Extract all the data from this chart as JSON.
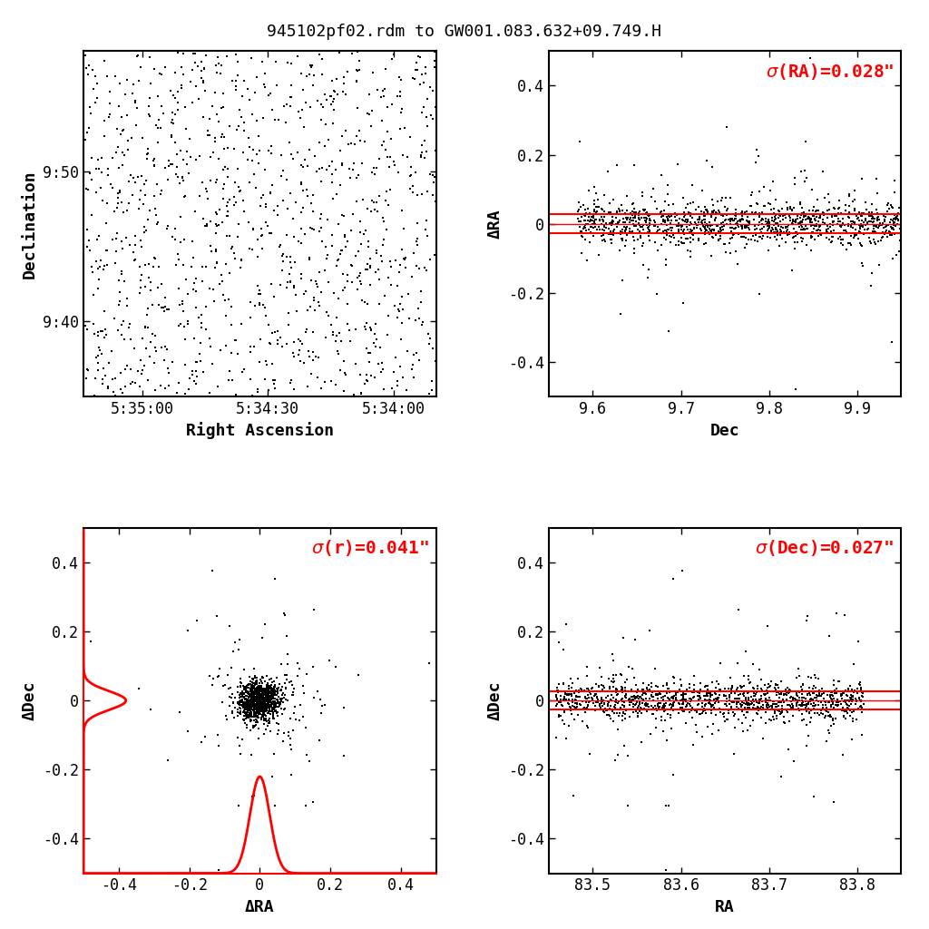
{
  "title": "945102pf02.rdm to GW001.083.632+09.749.H",
  "sigma_ra_str": "0.028",
  "sigma_dec_str": "0.027",
  "sigma_r_str": "0.041",
  "n_stars": 1200,
  "ra_sigma": 0.028,
  "dec_sigma": 0.027,
  "sky_ra_min": 83.458,
  "sky_ra_max": 83.808,
  "sky_dec_min": 9.583,
  "sky_dec_max": 9.967,
  "res_xlim": [
    -0.5,
    0.5
  ],
  "res_ylim": [
    -0.5,
    0.5
  ],
  "dec_xlim": [
    9.55,
    9.95
  ],
  "ra_xlim": [
    83.45,
    83.85
  ],
  "background_color": "#ffffff",
  "point_color": "#000000",
  "line_color": "#ff0000",
  "title_fontsize": 13,
  "label_fontsize": 13,
  "tick_fontsize": 12,
  "sigma_title_fontsize": 14
}
